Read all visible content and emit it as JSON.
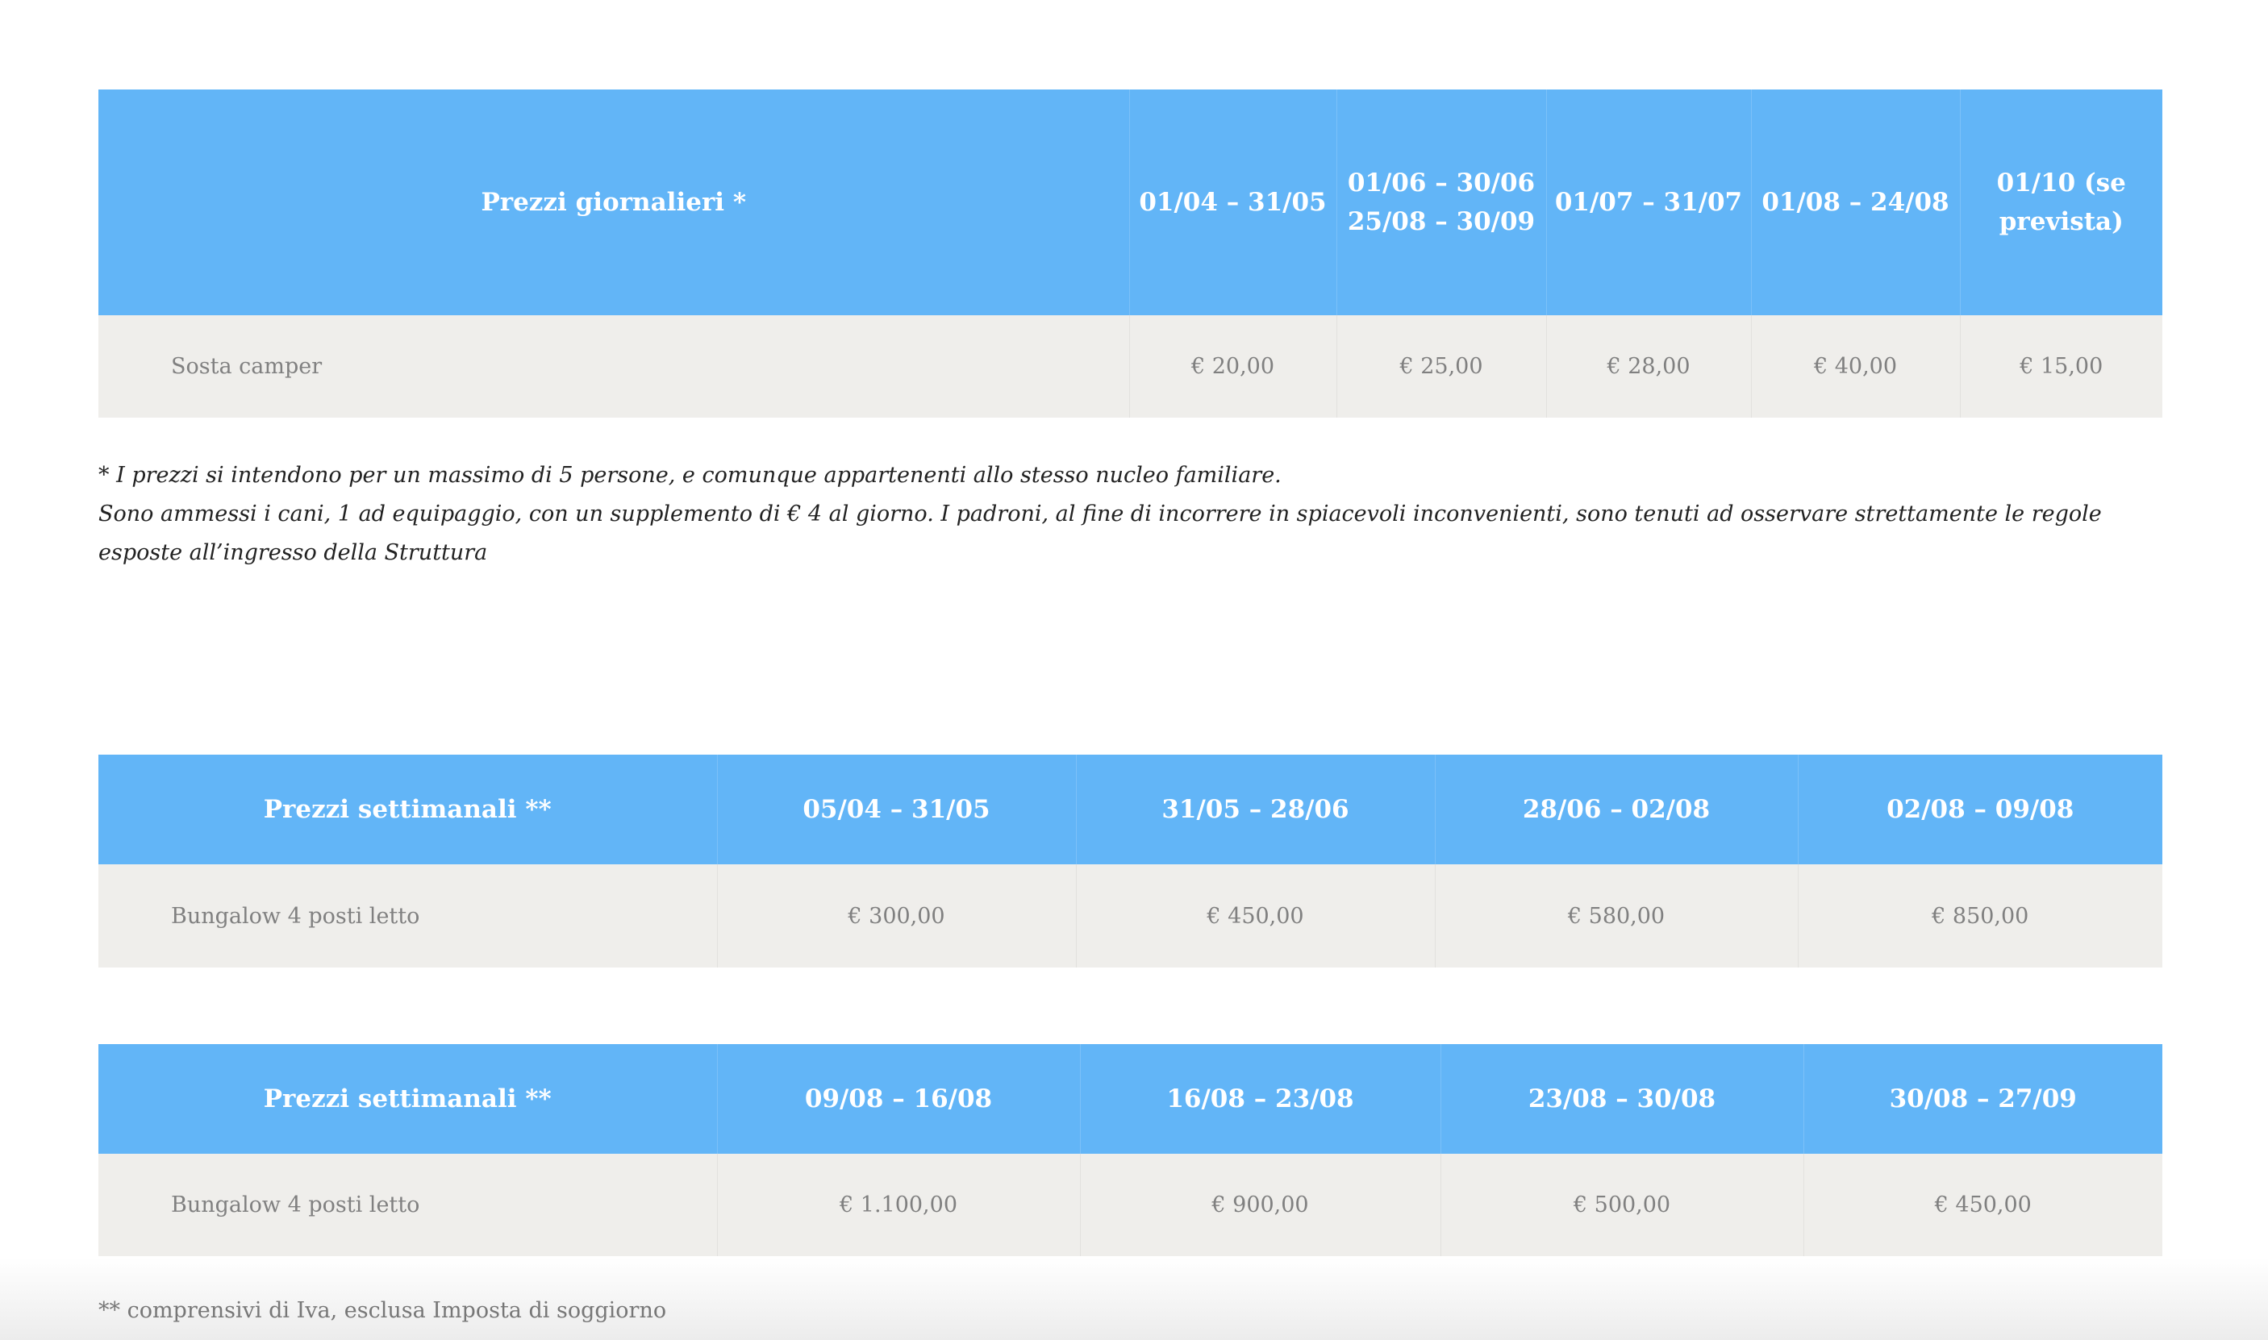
{
  "colors": {
    "header_bg": "#62b5f7",
    "row_bg": "#efeeeb"
  },
  "daily": {
    "headers": [
      "Prezzi giornalieri *",
      "01/04 – 31/05",
      "01/06 – 30/06 25/08 – 30/09",
      "01/07 – 31/07",
      "01/08 – 24/08",
      "01/10 (se prevista)"
    ],
    "row": [
      "Sosta camper",
      "€ 20,00",
      "€ 25,00",
      "€ 28,00",
      "€ 40,00",
      "€ 15,00"
    ]
  },
  "notes": [
    "* I prezzi si intendono per un massimo di 5 persone, e comunque appartenenti allo stesso nucleo familiare.",
    "Sono ammessi i cani, 1 ad equipaggio, con un supplemento di € 4 al giorno. I padroni, al fine di incorrere in spiacevoli inconvenienti, sono tenuti ad osservare strettamente le regole esposte all’ingresso della Struttura"
  ],
  "weekly1": {
    "headers": [
      "Prezzi settimanali **",
      "05/04 – 31/05",
      "31/05 – 28/06",
      "28/06 – 02/08",
      "02/08 – 09/08"
    ],
    "row": [
      "Bungalow 4 posti letto",
      "€ 300,00",
      "€ 450,00",
      "€ 580,00",
      "€ 850,00"
    ]
  },
  "weekly2": {
    "headers": [
      "Prezzi settimanali **",
      "09/08 – 16/08",
      "16/08 – 23/08",
      "23/08 – 30/08",
      "30/08 – 27/09"
    ],
    "row": [
      "Bungalow 4 posti letto",
      "€ 1.100,00",
      "€ 900,00",
      "€ 500,00",
      "€ 450,00"
    ]
  },
  "footnote": "** comprensivi di Iva, esclusa Imposta di soggiorno"
}
